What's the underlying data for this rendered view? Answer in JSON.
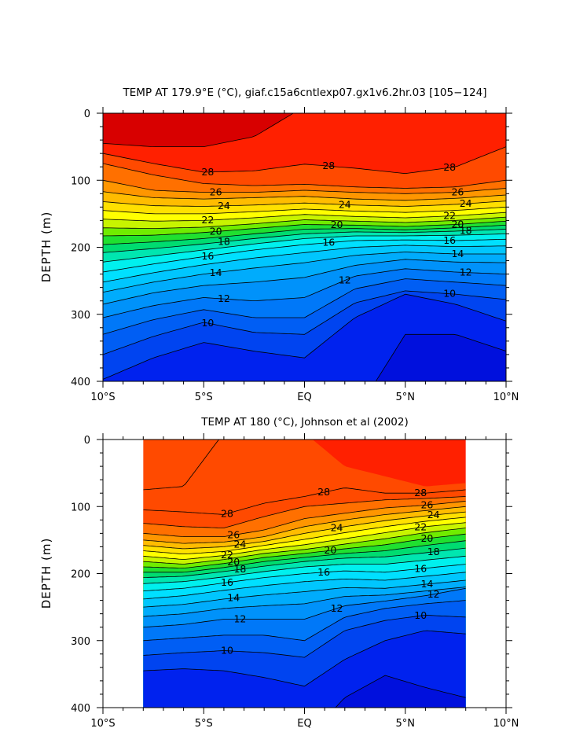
{
  "chart_data": [
    {
      "type": "contour",
      "title": "TEMP AT 179.9°E (°C), giaf.c15a6cntlexp07.gx1v6.2hr.03 [105−124]",
      "ylabel": "DEPTH (m)",
      "xlabel": "",
      "x_range": [
        -10,
        10
      ],
      "y_range": [
        0,
        400
      ],
      "y_inverted": true,
      "x_ticks": [
        {
          "value": -10,
          "label": "10°S"
        },
        {
          "value": -5,
          "label": "5°S"
        },
        {
          "value": 0,
          "label": "EQ"
        },
        {
          "value": 5,
          "label": "5°N"
        },
        {
          "value": 10,
          "label": "10°N"
        }
      ],
      "y_ticks": [
        {
          "value": 0,
          "label": "0"
        },
        {
          "value": 100,
          "label": "100"
        },
        {
          "value": 200,
          "label": "200"
        },
        {
          "value": 300,
          "label": "300"
        },
        {
          "value": 400,
          "label": "400"
        }
      ],
      "data_extent": [
        -10,
        10
      ],
      "contour_interval": 1,
      "labeled_levels": [
        28,
        26,
        24,
        22,
        20,
        18,
        16,
        14,
        12,
        10
      ],
      "isotherm_depths": {
        "x": [
          -10,
          -7.5,
          -5,
          -2.5,
          0,
          2.5,
          5,
          7.5,
          10
        ],
        "levels": [
          {
            "t": 29,
            "depth": [
              45,
              50,
              50,
              35,
              -10,
              -50,
              -80,
              -80,
              -80
            ]
          },
          {
            "t": 28,
            "depth": [
              60,
              75,
              88,
              86,
              76,
              82,
              90,
              80,
              50
            ]
          },
          {
            "t": 27,
            "depth": [
              75,
              92,
              105,
              108,
              106,
              110,
              112,
              110,
              100
            ]
          },
          {
            "t": 26,
            "depth": [
              100,
              115,
              118,
              118,
              115,
              118,
              120,
              118,
              112
            ]
          },
          {
            "t": 25,
            "depth": [
              117,
              126,
              128,
              126,
              124,
              128,
              130,
              127,
              122
            ]
          },
          {
            "t": 24,
            "depth": [
              132,
              138,
              139,
              137,
              134,
              137,
              139,
              136,
              131
            ]
          },
          {
            "t": 23,
            "depth": [
              145,
              150,
              150,
              147,
              143,
              146,
              148,
              145,
              140
            ]
          },
          {
            "t": 22,
            "depth": [
              158,
              161,
              160,
              156,
              151,
              154,
              156,
              153,
              148
            ]
          },
          {
            "t": 21,
            "depth": [
              171,
              172,
              170,
              165,
              159,
              161,
              163,
              160,
              155
            ]
          },
          {
            "t": 20,
            "depth": [
              183,
              182,
              178,
              172,
              166,
              167,
              169,
              166,
              161
            ]
          },
          {
            "t": 19,
            "depth": [
              196,
              192,
              187,
              180,
              173,
              172,
              174,
              171,
              167
            ]
          },
          {
            "t": 18,
            "depth": [
              208,
              202,
              195,
              187,
              180,
              177,
              178,
              176,
              173
            ]
          },
          {
            "t": 17,
            "depth": [
              222,
              213,
              204,
              195,
              187,
              183,
              183,
              182,
              180
            ]
          },
          {
            "t": 16,
            "depth": [
              237,
              225,
              214,
              204,
              196,
              190,
              189,
              190,
              188
            ]
          },
          {
            "t": 15,
            "depth": [
              252,
              238,
              226,
              216,
              208,
              200,
              197,
              199,
              198
            ]
          },
          {
            "t": 14,
            "depth": [
              267,
              252,
              240,
              231,
              223,
              212,
              207,
              210,
              210
            ]
          },
          {
            "t": 13,
            "depth": [
              285,
              268,
              257,
              252,
              245,
              227,
              218,
              222,
              223
            ]
          },
          {
            "t": 12,
            "depth": [
              305,
              287,
              275,
              280,
              275,
              243,
              232,
              237,
              240
            ]
          },
          {
            "t": 11,
            "depth": [
              330,
              308,
              293,
              305,
              305,
              262,
              247,
              252,
              257
            ]
          },
          {
            "t": 10,
            "depth": [
              360,
              333,
              312,
              327,
              330,
              283,
              265,
              270,
              278
            ]
          },
          {
            "t": 9,
            "depth": [
              397,
              365,
              342,
              355,
              365,
              305,
              270,
              285,
              310
            ]
          },
          {
            "t": 8,
            "depth": [
              450,
              450,
              450,
              450,
              450,
              450,
              330,
              330,
              355
            ]
          }
        ]
      }
    },
    {
      "type": "contour",
      "title": "TEMP AT 180 (°C), Johnson et al (2002)",
      "ylabel": "DEPTH (m)",
      "xlabel": "",
      "x_range": [
        -10,
        10
      ],
      "y_range": [
        0,
        400
      ],
      "y_inverted": true,
      "x_ticks": [
        {
          "value": -10,
          "label": "10°S"
        },
        {
          "value": -5,
          "label": "5°S"
        },
        {
          "value": 0,
          "label": "EQ"
        },
        {
          "value": 5,
          "label": "5°N"
        },
        {
          "value": 10,
          "label": "10°N"
        }
      ],
      "y_ticks": [
        {
          "value": 0,
          "label": "0"
        },
        {
          "value": 100,
          "label": "100"
        },
        {
          "value": 200,
          "label": "200"
        },
        {
          "value": 300,
          "label": "300"
        },
        {
          "value": 400,
          "label": "400"
        }
      ],
      "data_extent": [
        -8,
        8
      ],
      "contour_interval": 1,
      "labeled_levels": [
        28,
        26,
        24,
        22,
        20,
        18,
        16,
        14,
        12,
        10
      ],
      "isotherm_depths": {
        "x": [
          -8,
          -6,
          -4,
          -2,
          0,
          2,
          4,
          6,
          8
        ],
        "levels": [
          {
            "t": 29,
            "depth": [
              75,
              70,
              -10,
              -10,
              -10,
              -10,
              -10,
              -10,
              -10
            ]
          },
          {
            "t": 28.5,
            "depth": [
              -10,
              -10,
              -10,
              -10,
              -10,
              40,
              55,
              70,
              65
            ]
          },
          {
            "t": 28,
            "depth": [
              105,
              108,
              112,
              95,
              85,
              72,
              80,
              80,
              75
            ]
          },
          {
            "t": 27,
            "depth": [
              125,
              130,
              132,
              115,
              100,
              95,
              90,
              88,
              85
            ]
          },
          {
            "t": 26,
            "depth": [
              140,
              145,
              145,
              135,
              118,
              110,
              102,
              98,
              92
            ]
          },
          {
            "t": 25,
            "depth": [
              150,
              155,
              153,
              145,
              130,
              120,
              112,
              106,
              100
            ]
          },
          {
            "t": 24,
            "depth": [
              158,
              163,
              160,
              152,
              140,
              130,
              121,
              114,
              108
            ]
          },
          {
            "t": 23,
            "depth": [
              166,
              171,
              167,
              158,
              149,
              139,
              130,
              122,
              116
            ]
          },
          {
            "t": 22,
            "depth": [
              174,
              179,
              173,
              164,
              157,
              148,
              139,
              130,
              124
            ]
          },
          {
            "t": 21,
            "depth": [
              182,
              186,
              179,
              170,
              164,
              156,
              148,
              139,
              132
            ]
          },
          {
            "t": 20,
            "depth": [
              190,
              192,
              185,
              176,
              170,
              163,
              157,
              148,
              141
            ]
          },
          {
            "t": 19,
            "depth": [
              198,
              198,
              191,
              182,
              176,
              170,
              166,
              158,
              151
            ]
          },
          {
            "t": 18,
            "depth": [
              206,
              204,
              197,
              189,
              182,
              177,
              175,
              169,
              162
            ]
          },
          {
            "t": 17,
            "depth": [
              215,
              212,
              205,
              197,
              190,
              186,
              186,
              180,
              174
            ]
          },
          {
            "t": 16,
            "depth": [
              226,
              222,
              214,
              206,
              200,
              196,
              198,
              192,
              186
            ]
          },
          {
            "t": 15,
            "depth": [
              238,
              233,
              225,
              218,
              212,
              208,
              210,
              204,
              198
            ]
          },
          {
            "t": 14,
            "depth": [
              250,
              246,
              238,
              232,
              227,
              221,
              222,
              216,
              210
            ]
          },
          {
            "t": 13,
            "depth": [
              264,
              260,
              252,
              248,
              245,
              234,
              232,
              226,
              220
            ]
          },
          {
            "t": 12,
            "depth": [
              280,
              276,
              268,
              268,
              268,
              248,
              241,
              233,
              222
            ]
          },
          {
            "t": 11,
            "depth": [
              300,
              296,
              292,
              292,
              300,
              265,
              252,
              245,
              240
            ]
          },
          {
            "t": 10,
            "depth": [
              322,
              318,
              315,
              318,
              325,
              285,
              270,
              262,
              265
            ]
          },
          {
            "t": 9,
            "depth": [
              345,
              342,
              345,
              355,
              368,
              328,
              300,
              285,
              290
            ]
          },
          {
            "t": 8,
            "depth": [
              450,
              450,
              450,
              450,
              450,
              385,
              352,
              370,
              385
            ]
          }
        ]
      }
    }
  ],
  "colormap": {
    "levels": [
      8,
      9,
      10,
      11,
      12,
      13,
      14,
      15,
      16,
      17,
      18,
      19,
      20,
      21,
      22,
      23,
      24,
      25,
      26,
      27,
      28,
      29
    ],
    "colors": [
      "#0022ee",
      "#0044f0",
      "#005ef4",
      "#0078f8",
      "#0092fa",
      "#00acfc",
      "#00c6fe",
      "#00e0ff",
      "#00f0ee",
      "#00e6b0",
      "#00dc70",
      "#20e030",
      "#70ec00",
      "#c8f400",
      "#ffff00",
      "#ffe000",
      "#ffbc00",
      "#ff9600",
      "#ff7000",
      "#ff4a00",
      "#ff2000",
      "#d80000"
    ],
    "below_min": "#0010dd"
  }
}
